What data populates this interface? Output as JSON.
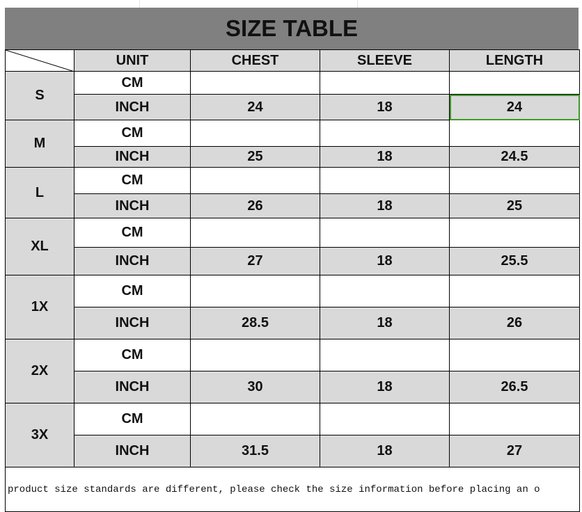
{
  "title": "SIZE TABLE",
  "headers": [
    "UNIT",
    "CHEST",
    "SLEEVE",
    "LENGTH"
  ],
  "sizes": [
    {
      "size": "S",
      "cm": {
        "unit": "CM",
        "chest": "",
        "sleeve": "",
        "length": ""
      },
      "inch": {
        "unit": "INCH",
        "chest": "24",
        "sleeve": "18",
        "length": "24"
      }
    },
    {
      "size": "M",
      "cm": {
        "unit": "CM",
        "chest": "",
        "sleeve": "",
        "length": ""
      },
      "inch": {
        "unit": "INCH",
        "chest": "25",
        "sleeve": "18",
        "length": "24.5"
      }
    },
    {
      "size": "L",
      "cm": {
        "unit": "CM",
        "chest": "",
        "sleeve": "",
        "length": ""
      },
      "inch": {
        "unit": "INCH",
        "chest": "26",
        "sleeve": "18",
        "length": "25"
      }
    },
    {
      "size": "XL",
      "cm": {
        "unit": "CM",
        "chest": "",
        "sleeve": "",
        "length": ""
      },
      "inch": {
        "unit": "INCH",
        "chest": "27",
        "sleeve": "18",
        "length": "25.5"
      }
    },
    {
      "size": "1X",
      "cm": {
        "unit": "CM",
        "chest": "",
        "sleeve": "",
        "length": ""
      },
      "inch": {
        "unit": "INCH",
        "chest": "28.5",
        "sleeve": "18",
        "length": "26"
      }
    },
    {
      "size": "2X",
      "cm": {
        "unit": "CM",
        "chest": "",
        "sleeve": "",
        "length": ""
      },
      "inch": {
        "unit": "INCH",
        "chest": "30",
        "sleeve": "18",
        "length": "26.5"
      }
    },
    {
      "size": "3X",
      "cm": {
        "unit": "CM",
        "chest": "",
        "sleeve": "",
        "length": ""
      },
      "inch": {
        "unit": "INCH",
        "chest": "31.5",
        "sleeve": "18",
        "length": "27"
      }
    }
  ],
  "note": "product size standards are different, please check the size information before placing an o",
  "colors": {
    "title_bg": "#808080",
    "shaded_cell": "#d9d9d9",
    "selection": "#3f9a2a"
  }
}
